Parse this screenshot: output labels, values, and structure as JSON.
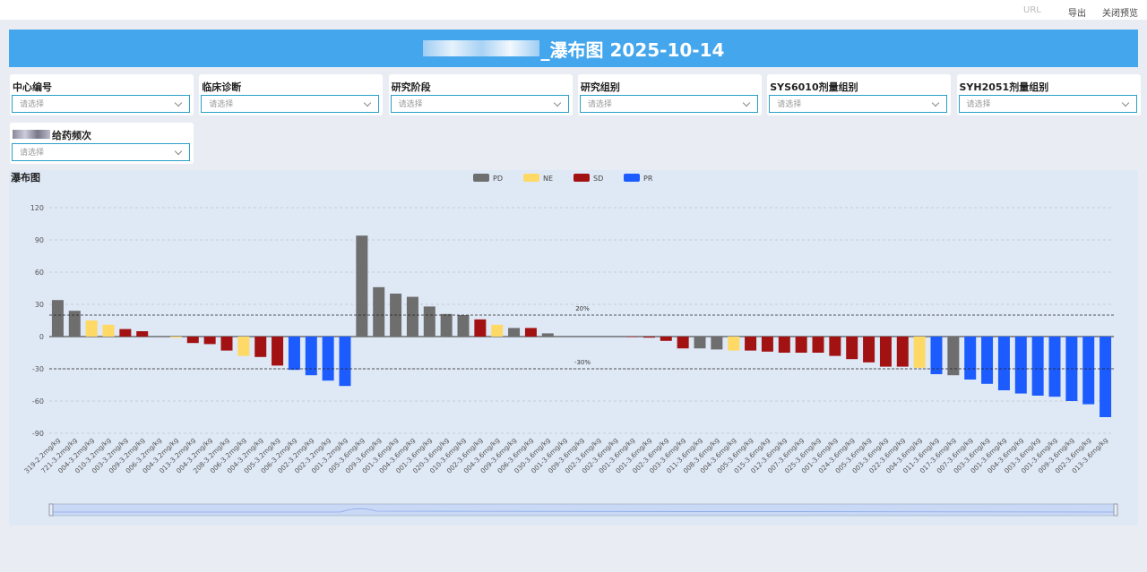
{
  "toolbar": {
    "url": "URL",
    "export": "导出",
    "close": "关闭预览"
  },
  "header": {
    "title": "_瀑布图  2025-10-14"
  },
  "filters": [
    {
      "label": "中心编号",
      "placeholder": "请选择"
    },
    {
      "label": "临床诊断",
      "placeholder": "请选择"
    },
    {
      "label": "研究阶段",
      "placeholder": "请选择"
    },
    {
      "label": "研究组别",
      "placeholder": "请选择"
    },
    {
      "label": "SYS6010剂量组别",
      "placeholder": "请选择"
    },
    {
      "label": "SYH2051剂量组别",
      "placeholder": "请选择"
    },
    {
      "label": "给药频次",
      "placeholder": "请选择"
    }
  ],
  "chart_data": {
    "type": "bar",
    "title": "瀑布图",
    "legend": [
      {
        "name": "PD",
        "color": "#6e6e6e"
      },
      {
        "name": "NE",
        "color": "#ffd966"
      },
      {
        "name": "SD",
        "color": "#a31212"
      },
      {
        "name": "PR",
        "color": "#1c5cff"
      }
    ],
    "categories": [
      "319-2.2mg/kg",
      "721-3.2mg/kg",
      "004-3.2mg/kg",
      "010-3.2mg/kg",
      "003-3.2mg/kg",
      "009-3.2mg/kg",
      "006-3.2mg/kg",
      "004-3.2mg/kg",
      "013-3.2mg/kg",
      "004-3.2mg/kg",
      "208-3.2mg/kg",
      "006-3.2mg/kg",
      "004-3.2mg/kg",
      "005-3.2mg/kg",
      "006-3.2mg/kg",
      "002-3.2mg/kg",
      "002-3.2mg/kg",
      "001-3.2mg/kg",
      "005-3.6mg/kg",
      "009-3.6mg/kg",
      "001-3.6mg/kg",
      "004-3.6mg/kg",
      "001-3.6mg/kg",
      "020-3.6mg/kg",
      "010-3.6mg/kg",
      "002-3.6mg/kg",
      "004-3.6mg/kg",
      "009-3.6mg/kg",
      "006-3.6mg/kg",
      "030-3.6mg/kg",
      "001-3.6mg/kg",
      "009-3.6mg/kg",
      "002-3.6mg/kg",
      "002-3.6mg/kg",
      "001-3.6mg/kg",
      "001-3.6mg/kg",
      "002-3.6mg/kg",
      "003-3.6mg/kg",
      "011-3.6mg/kg",
      "008-3.6mg/kg",
      "004-3.6mg/kg",
      "005-3.6mg/kg",
      "015-3.6mg/kg",
      "012-3.6mg/kg",
      "007-3.6mg/kg",
      "025-3.6mg/kg",
      "001-3.6mg/kg",
      "024-3.6mg/kg",
      "005-3.6mg/kg",
      "003-3.6mg/kg",
      "022-3.6mg/kg",
      "004-3.6mg/kg",
      "011-3.6mg/kg",
      "017-3.6mg/kg",
      "007-3.6mg/kg",
      "003-3.6mg/kg",
      "001-3.6mg/kg",
      "004-3.6mg/kg",
      "003-3.6mg/kg",
      "001-3.6mg/kg",
      "009-3.6mg/kg",
      "002-3.6mg/kg",
      "013-3.6mg/kg"
    ],
    "values": [
      34,
      24,
      15,
      11,
      7,
      5,
      0,
      -1,
      -6,
      -7,
      -13,
      -18,
      -19,
      -27,
      -31,
      -36,
      -41,
      -46,
      94,
      46,
      40,
      37,
      28,
      21,
      20,
      16,
      11,
      8,
      8,
      3,
      0,
      0,
      0,
      0,
      -0.5,
      -1,
      -4,
      -11,
      -11,
      -12,
      -13,
      -13,
      -14,
      -15,
      -15,
      -15,
      -18,
      -21,
      -24,
      -28,
      -28,
      -29,
      -35,
      -36,
      -40,
      -44,
      -50,
      -53,
      -55,
      -56,
      -60,
      -63,
      -75
    ],
    "groups": [
      "PD",
      "PD",
      "NE",
      "NE",
      "SD",
      "SD",
      "SD",
      "NE",
      "SD",
      "SD",
      "SD",
      "NE",
      "SD",
      "SD",
      "PR",
      "PR",
      "PR",
      "PR",
      "PD",
      "PD",
      "PD",
      "PD",
      "PD",
      "PD",
      "PD",
      "SD",
      "NE",
      "PD",
      "SD",
      "PD",
      "SD",
      "SD",
      "SD",
      "SD",
      "SD",
      "SD",
      "SD",
      "SD",
      "PD",
      "PD",
      "NE",
      "SD",
      "SD",
      "SD",
      "SD",
      "SD",
      "SD",
      "SD",
      "SD",
      "SD",
      "SD",
      "NE",
      "PR",
      "PD",
      "PR",
      "PR",
      "PR",
      "PR",
      "PR",
      "PR",
      "PR",
      "PR",
      "PR"
    ],
    "ylim": [
      -90,
      120
    ],
    "yticks": [
      -90,
      -60,
      -30,
      0,
      30,
      60,
      90,
      120
    ],
    "grid": true,
    "reference_lines": [
      {
        "value": 20,
        "label": "20%"
      },
      {
        "value": -30,
        "label": "-30%"
      }
    ]
  }
}
